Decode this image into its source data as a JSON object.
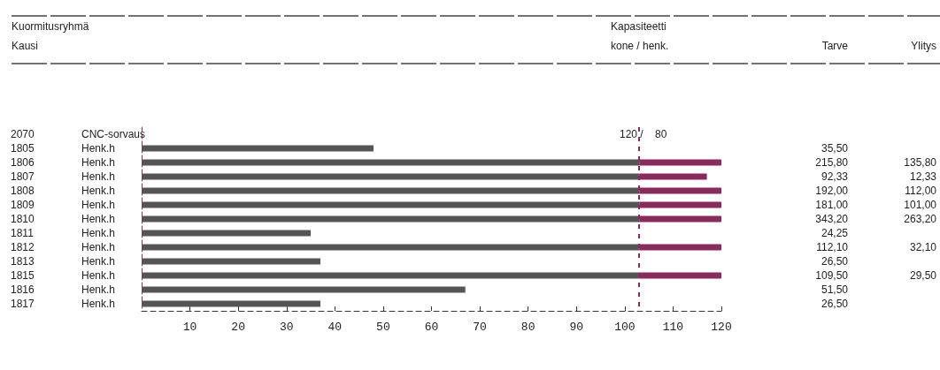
{
  "chart_data": [
    {
      "type": "bar",
      "orientation": "horizontal",
      "stacked": true,
      "grid": false,
      "categories": [
        "2070 CNC-sorvaus",
        "1805 Henk.h",
        "1806 Henk.h",
        "1807 Henk.h",
        "1808 Henk.h",
        "1809 Henk.h",
        "1810 Henk.h",
        "1811 Henk.h",
        "1812 Henk.h",
        "1813 Henk.h",
        "1815 Henk.h",
        "1816 Henk.h",
        "1817 Henk.h"
      ],
      "xlim": [
        0,
        120
      ],
      "xticks": [
        10,
        20,
        30,
        40,
        50,
        60,
        70,
        80,
        90,
        100,
        110,
        120
      ],
      "series": [
        {
          "color": "#555555",
          "values": [
            null,
            48,
            103,
            103,
            103,
            103,
            103,
            35,
            103,
            37,
            103,
            67,
            37
          ]
        },
        {
          "color": "#8b2a5a",
          "values": [
            null,
            null,
            17,
            14,
            17,
            17,
            17,
            null,
            17,
            null,
            17,
            null,
            null
          ]
        }
      ],
      "ref_lines": [
        {
          "axis": "x",
          "value": 103,
          "color": "#8b2a5a",
          "line_style": "dashed"
        }
      ],
      "annotations": [
        "Kuormitusryhmä",
        "Kausi",
        "Kapasiteetti",
        "kone / henk.",
        "120 /    80"
      ]
    },
    {
      "type": "other",
      "annotations": [
        "Tarve",
        "Ylitys",
        {
          "text": "35,50",
          "x": "Tarve",
          "y": "1805 Henk.h"
        },
        {
          "text": "215,80",
          "x": "Tarve",
          "y": "1806 Henk.h"
        },
        {
          "text": "135,80",
          "x": "Ylitys",
          "y": "1806 Henk.h"
        },
        {
          "text": "92,33",
          "x": "Tarve",
          "y": "1807 Henk.h"
        },
        {
          "text": "12,33",
          "x": "Ylitys",
          "y": "1807 Henk.h"
        },
        {
          "text": "192,00",
          "x": "Tarve",
          "y": "1808 Henk.h"
        },
        {
          "text": "112,00",
          "x": "Ylitys",
          "y": "1808 Henk.h"
        },
        {
          "text": "181,00",
          "x": "Tarve",
          "y": "1809 Henk.h"
        },
        {
          "text": "101,00",
          "x": "Ylitys",
          "y": "1809 Henk.h"
        },
        {
          "text": "343,20",
          "x": "Tarve",
          "y": "1810 Henk.h"
        },
        {
          "text": "263,20",
          "x": "Ylitys",
          "y": "1810 Henk.h"
        },
        {
          "text": "24,25",
          "x": "Tarve",
          "y": "1811 Henk.h"
        },
        {
          "text": "112,10",
          "x": "Tarve",
          "y": "1812 Henk.h"
        },
        {
          "text": "32,10",
          "x": "Ylitys",
          "y": "1812 Henk.h"
        },
        {
          "text": "26,50",
          "x": "Tarve",
          "y": "1813 Henk.h"
        },
        {
          "text": "109,50",
          "x": "Tarve",
          "y": "1815 Henk.h"
        },
        {
          "text": "29,50",
          "x": "Ylitys",
          "y": "1815 Henk.h"
        },
        {
          "text": "51,50",
          "x": "Tarve",
          "y": "1816 Henk.h"
        },
        {
          "text": "26,50",
          "x": "Tarve",
          "y": "1817 Henk.h"
        }
      ]
    }
  ]
}
